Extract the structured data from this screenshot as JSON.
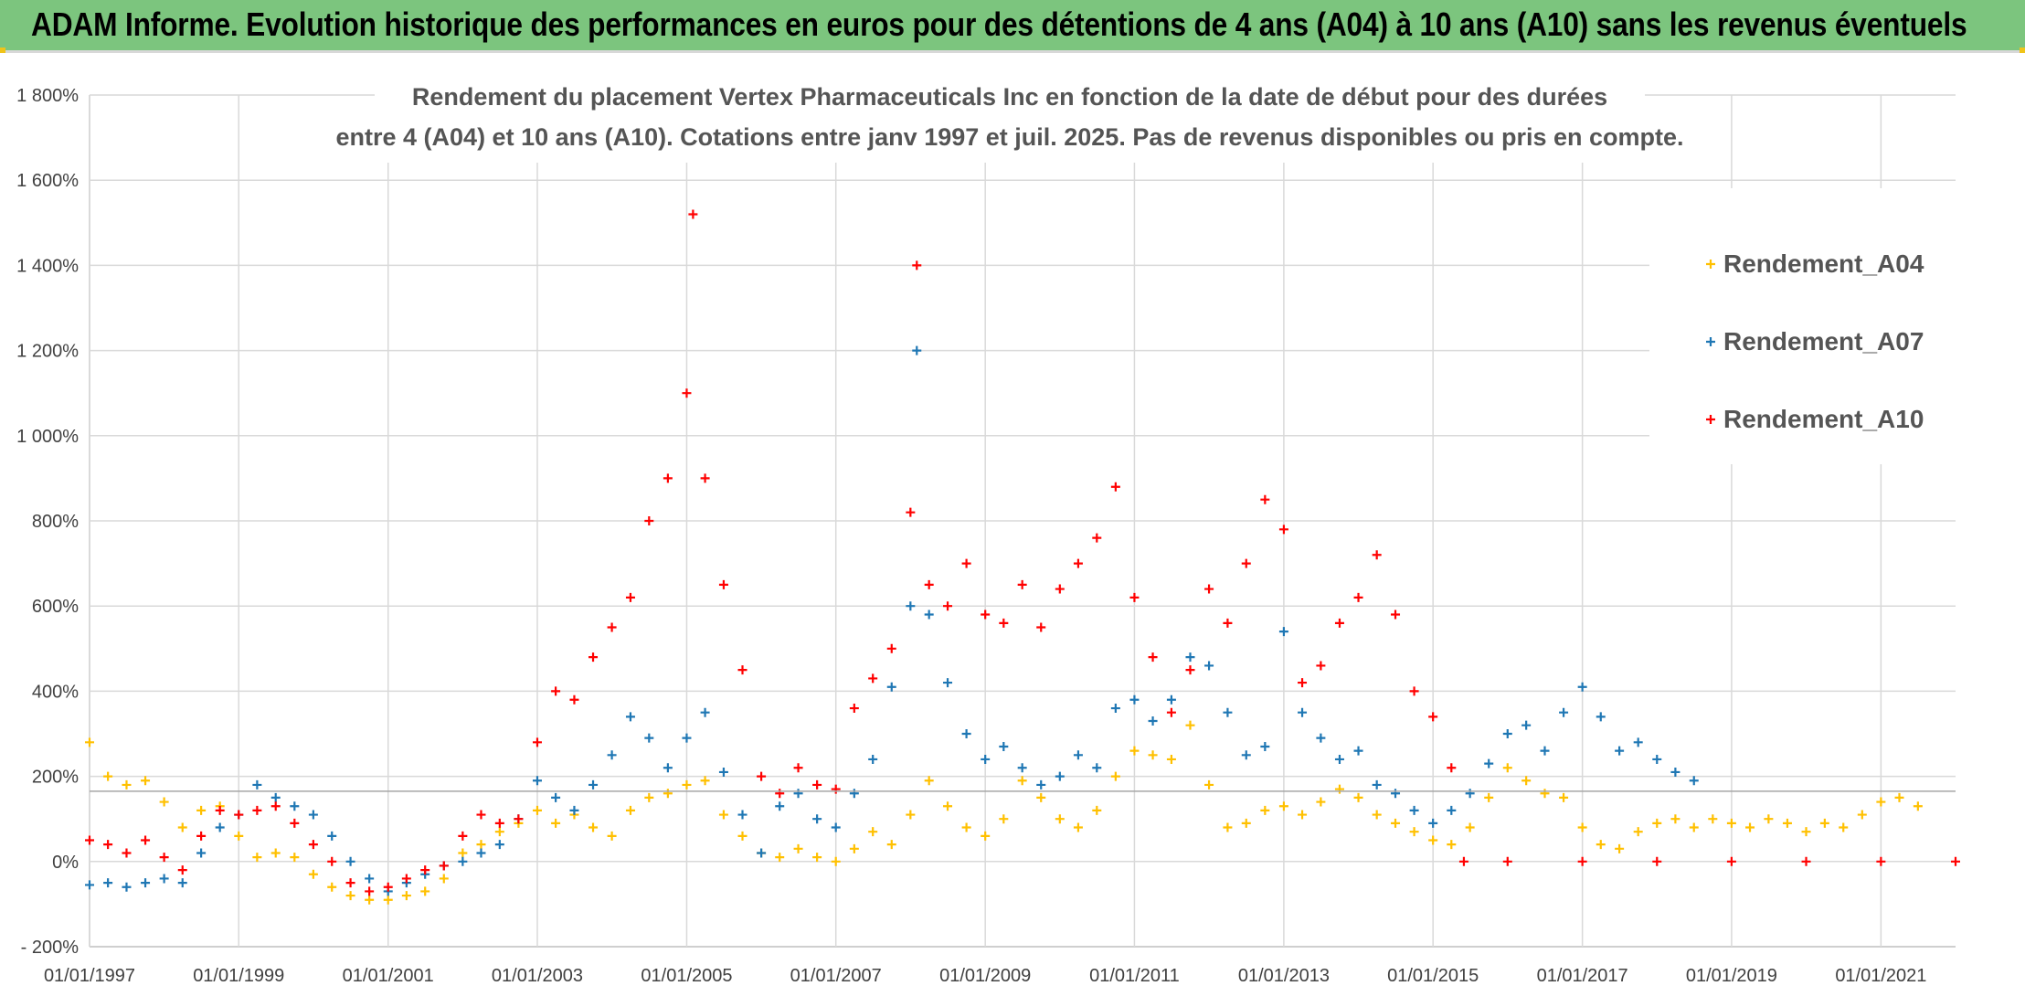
{
  "banner": {
    "title": "ADAM Informe. Evolution historique des performances en euros pour des détentions de 4 ans (A04) à 10 ans (A10) sans les revenus éventuels"
  },
  "colors": {
    "banner_bg": "#7cc57e",
    "grid": "#d9d9d9",
    "A04": "#ffc000",
    "A07": "#1f77b4",
    "A10": "#ff0000",
    "reference_line": "#a6a6a6"
  },
  "chart_data": {
    "type": "scatter",
    "title_line1": "Rendement du placement Vertex Pharmaceuticals Inc en fonction de la date de début pour des durées",
    "title_line2": "entre 4 (A04) et 10 ans (A10). Cotations entre janv 1997 et juil. 2025. Pas de revenus disponibles ou pris en compte.",
    "xlabel": "",
    "ylabel": "",
    "ylim": [
      -200,
      1800
    ],
    "y_ticks": [
      "- 200%",
      "0%",
      "200%",
      "400%",
      "600%",
      "800%",
      "1 000%",
      "1 200%",
      "1 400%",
      "1 600%",
      "1 800%"
    ],
    "xlim": [
      "1997-01-01",
      "2022-01-01"
    ],
    "x_ticks": [
      "01/01/1997",
      "01/01/1999",
      "01/01/2001",
      "01/01/2003",
      "01/01/2005",
      "01/01/2007",
      "01/01/2009",
      "01/01/2011",
      "01/01/2013",
      "01/01/2015",
      "01/01/2017",
      "01/01/2019",
      "01/01/2021"
    ],
    "reference_line_y": 165,
    "legend_position": "right",
    "grid": true,
    "marker": "+",
    "series": [
      {
        "name": "Rendement_A04",
        "color": "#ffc000",
        "points": [
          [
            "1997-01",
            280
          ],
          [
            "1997-04",
            200
          ],
          [
            "1997-07",
            180
          ],
          [
            "1997-10",
            190
          ],
          [
            "1998-01",
            140
          ],
          [
            "1998-04",
            80
          ],
          [
            "1998-07",
            120
          ],
          [
            "1998-10",
            130
          ],
          [
            "1999-01",
            60
          ],
          [
            "1999-04",
            10
          ],
          [
            "1999-07",
            20
          ],
          [
            "1999-10",
            10
          ],
          [
            "2000-01",
            -30
          ],
          [
            "2000-04",
            -60
          ],
          [
            "2000-07",
            -80
          ],
          [
            "2000-10",
            -90
          ],
          [
            "2001-01",
            -90
          ],
          [
            "2001-04",
            -80
          ],
          [
            "2001-07",
            -70
          ],
          [
            "2001-10",
            -40
          ],
          [
            "2002-01",
            20
          ],
          [
            "2002-04",
            40
          ],
          [
            "2002-07",
            70
          ],
          [
            "2002-10",
            90
          ],
          [
            "2003-01",
            120
          ],
          [
            "2003-04",
            90
          ],
          [
            "2003-07",
            110
          ],
          [
            "2003-10",
            80
          ],
          [
            "2004-01",
            60
          ],
          [
            "2004-04",
            120
          ],
          [
            "2004-07",
            150
          ],
          [
            "2004-10",
            160
          ],
          [
            "2005-01",
            180
          ],
          [
            "2005-04",
            190
          ],
          [
            "2005-07",
            110
          ],
          [
            "2005-10",
            60
          ],
          [
            "2006-01",
            20
          ],
          [
            "2006-04",
            10
          ],
          [
            "2006-07",
            30
          ],
          [
            "2006-10",
            10
          ],
          [
            "2007-01",
            0
          ],
          [
            "2007-04",
            30
          ],
          [
            "2007-07",
            70
          ],
          [
            "2007-10",
            40
          ],
          [
            "2008-01",
            110
          ],
          [
            "2008-04",
            190
          ],
          [
            "2008-07",
            130
          ],
          [
            "2008-10",
            80
          ],
          [
            "2009-01",
            60
          ],
          [
            "2009-04",
            100
          ],
          [
            "2009-07",
            190
          ],
          [
            "2009-10",
            150
          ],
          [
            "2010-01",
            100
          ],
          [
            "2010-04",
            80
          ],
          [
            "2010-07",
            120
          ],
          [
            "2010-10",
            200
          ],
          [
            "2011-01",
            260
          ],
          [
            "2011-04",
            250
          ],
          [
            "2011-07",
            240
          ],
          [
            "2011-10",
            320
          ],
          [
            "2012-01",
            180
          ],
          [
            "2012-04",
            80
          ],
          [
            "2012-07",
            90
          ],
          [
            "2012-10",
            120
          ],
          [
            "2013-01",
            130
          ],
          [
            "2013-04",
            110
          ],
          [
            "2013-07",
            140
          ],
          [
            "2013-10",
            170
          ],
          [
            "2014-01",
            150
          ],
          [
            "2014-04",
            110
          ],
          [
            "2014-07",
            90
          ],
          [
            "2014-10",
            70
          ],
          [
            "2015-01",
            50
          ],
          [
            "2015-04",
            40
          ],
          [
            "2015-07",
            80
          ],
          [
            "2015-10",
            150
          ],
          [
            "2016-01",
            220
          ],
          [
            "2016-04",
            190
          ],
          [
            "2016-07",
            160
          ],
          [
            "2016-10",
            150
          ],
          [
            "2017-01",
            80
          ],
          [
            "2017-04",
            40
          ],
          [
            "2017-07",
            30
          ],
          [
            "2017-10",
            70
          ],
          [
            "2018-01",
            90
          ],
          [
            "2018-04",
            100
          ],
          [
            "2018-07",
            80
          ],
          [
            "2018-10",
            100
          ],
          [
            "2019-01",
            90
          ],
          [
            "2019-04",
            80
          ],
          [
            "2019-07",
            100
          ],
          [
            "2019-10",
            90
          ],
          [
            "2020-01",
            70
          ],
          [
            "2020-04",
            90
          ],
          [
            "2020-07",
            80
          ],
          [
            "2020-10",
            110
          ],
          [
            "2021-01",
            140
          ],
          [
            "2021-04",
            150
          ],
          [
            "2021-07",
            130
          ]
        ]
      },
      {
        "name": "Rendement_A07",
        "color": "#1f77b4",
        "points": [
          [
            "1997-01",
            -55
          ],
          [
            "1997-04",
            -50
          ],
          [
            "1997-07",
            -60
          ],
          [
            "1997-10",
            -50
          ],
          [
            "1998-01",
            -40
          ],
          [
            "1998-04",
            -50
          ],
          [
            "1998-07",
            20
          ],
          [
            "1998-10",
            80
          ],
          [
            "1999-01",
            110
          ],
          [
            "1999-04",
            180
          ],
          [
            "1999-07",
            150
          ],
          [
            "1999-10",
            130
          ],
          [
            "2000-01",
            110
          ],
          [
            "2000-04",
            60
          ],
          [
            "2000-07",
            0
          ],
          [
            "2000-10",
            -40
          ],
          [
            "2001-01",
            -70
          ],
          [
            "2001-04",
            -50
          ],
          [
            "2001-07",
            -30
          ],
          [
            "2001-10",
            -10
          ],
          [
            "2002-01",
            0
          ],
          [
            "2002-04",
            20
          ],
          [
            "2002-07",
            40
          ],
          [
            "2002-10",
            100
          ],
          [
            "2003-01",
            190
          ],
          [
            "2003-04",
            150
          ],
          [
            "2003-07",
            120
          ],
          [
            "2003-10",
            180
          ],
          [
            "2004-01",
            250
          ],
          [
            "2004-04",
            340
          ],
          [
            "2004-07",
            290
          ],
          [
            "2004-10",
            220
          ],
          [
            "2005-01",
            290
          ],
          [
            "2005-04",
            350
          ],
          [
            "2005-07",
            210
          ],
          [
            "2005-10",
            110
          ],
          [
            "2006-01",
            20
          ],
          [
            "2006-04",
            130
          ],
          [
            "2006-07",
            160
          ],
          [
            "2006-10",
            100
          ],
          [
            "2007-01",
            80
          ],
          [
            "2007-04",
            160
          ],
          [
            "2007-07",
            240
          ],
          [
            "2007-10",
            410
          ],
          [
            "2008-01",
            600
          ],
          [
            "2008-02",
            1200
          ],
          [
            "2008-04",
            580
          ],
          [
            "2008-07",
            420
          ],
          [
            "2008-10",
            300
          ],
          [
            "2009-01",
            240
          ],
          [
            "2009-04",
            270
          ],
          [
            "2009-07",
            220
          ],
          [
            "2009-10",
            180
          ],
          [
            "2010-01",
            200
          ],
          [
            "2010-04",
            250
          ],
          [
            "2010-07",
            220
          ],
          [
            "2010-10",
            360
          ],
          [
            "2011-01",
            380
          ],
          [
            "2011-04",
            330
          ],
          [
            "2011-07",
            380
          ],
          [
            "2011-10",
            480
          ],
          [
            "2012-01",
            460
          ],
          [
            "2012-04",
            350
          ],
          [
            "2012-07",
            250
          ],
          [
            "2012-10",
            270
          ],
          [
            "2013-01",
            540
          ],
          [
            "2013-04",
            350
          ],
          [
            "2013-07",
            290
          ],
          [
            "2013-10",
            240
          ],
          [
            "2014-01",
            260
          ],
          [
            "2014-04",
            180
          ],
          [
            "2014-07",
            160
          ],
          [
            "2014-10",
            120
          ],
          [
            "2015-01",
            90
          ],
          [
            "2015-04",
            120
          ],
          [
            "2015-07",
            160
          ],
          [
            "2015-10",
            230
          ],
          [
            "2016-01",
            300
          ],
          [
            "2016-04",
            320
          ],
          [
            "2016-07",
            260
          ],
          [
            "2016-10",
            350
          ],
          [
            "2017-01",
            410
          ],
          [
            "2017-04",
            340
          ],
          [
            "2017-07",
            260
          ],
          [
            "2017-10",
            280
          ],
          [
            "2018-01",
            240
          ],
          [
            "2018-04",
            210
          ],
          [
            "2018-07",
            190
          ]
        ]
      },
      {
        "name": "Rendement_A10",
        "color": "#ff0000",
        "points": [
          [
            "1997-01",
            50
          ],
          [
            "1997-04",
            40
          ],
          [
            "1997-07",
            20
          ],
          [
            "1997-10",
            50
          ],
          [
            "1998-01",
            10
          ],
          [
            "1998-04",
            -20
          ],
          [
            "1998-07",
            60
          ],
          [
            "1998-10",
            120
          ],
          [
            "1999-01",
            110
          ],
          [
            "1999-04",
            120
          ],
          [
            "1999-07",
            130
          ],
          [
            "1999-10",
            90
          ],
          [
            "2000-01",
            40
          ],
          [
            "2000-04",
            0
          ],
          [
            "2000-07",
            -50
          ],
          [
            "2000-10",
            -70
          ],
          [
            "2001-01",
            -60
          ],
          [
            "2001-04",
            -40
          ],
          [
            "2001-07",
            -20
          ],
          [
            "2001-10",
            -10
          ],
          [
            "2002-01",
            60
          ],
          [
            "2002-04",
            110
          ],
          [
            "2002-07",
            90
          ],
          [
            "2002-10",
            100
          ],
          [
            "2003-01",
            280
          ],
          [
            "2003-04",
            400
          ],
          [
            "2003-07",
            380
          ],
          [
            "2003-10",
            480
          ],
          [
            "2004-01",
            550
          ],
          [
            "2004-04",
            620
          ],
          [
            "2004-07",
            800
          ],
          [
            "2004-10",
            900
          ],
          [
            "2005-01",
            1100
          ],
          [
            "2005-02",
            1520
          ],
          [
            "2005-04",
            900
          ],
          [
            "2005-07",
            650
          ],
          [
            "2005-10",
            450
          ],
          [
            "2006-01",
            200
          ],
          [
            "2006-04",
            160
          ],
          [
            "2006-07",
            220
          ],
          [
            "2006-10",
            180
          ],
          [
            "2007-01",
            170
          ],
          [
            "2007-04",
            360
          ],
          [
            "2007-07",
            430
          ],
          [
            "2007-10",
            500
          ],
          [
            "2008-01",
            820
          ],
          [
            "2008-02",
            1400
          ],
          [
            "2008-04",
            650
          ],
          [
            "2008-07",
            600
          ],
          [
            "2008-10",
            700
          ],
          [
            "2009-01",
            580
          ],
          [
            "2009-04",
            560
          ],
          [
            "2009-07",
            650
          ],
          [
            "2009-10",
            550
          ],
          [
            "2010-01",
            640
          ],
          [
            "2010-04",
            700
          ],
          [
            "2010-07",
            760
          ],
          [
            "2010-10",
            880
          ],
          [
            "2011-01",
            620
          ],
          [
            "2011-04",
            480
          ],
          [
            "2011-07",
            350
          ],
          [
            "2011-10",
            450
          ],
          [
            "2012-01",
            640
          ],
          [
            "2012-04",
            560
          ],
          [
            "2012-07",
            700
          ],
          [
            "2012-10",
            850
          ],
          [
            "2013-01",
            780
          ],
          [
            "2013-04",
            420
          ],
          [
            "2013-07",
            460
          ],
          [
            "2013-10",
            560
          ],
          [
            "2014-01",
            620
          ],
          [
            "2014-04",
            720
          ],
          [
            "2014-07",
            580
          ],
          [
            "2014-10",
            400
          ],
          [
            "2015-01",
            340
          ],
          [
            "2015-04",
            220
          ],
          [
            "2015-06",
            0
          ],
          [
            "2016-01",
            0
          ],
          [
            "2017-01",
            0
          ],
          [
            "2018-01",
            0
          ],
          [
            "2019-01",
            0
          ],
          [
            "2020-01",
            0
          ],
          [
            "2021-01",
            0
          ],
          [
            "2022-01",
            0
          ]
        ]
      }
    ]
  }
}
